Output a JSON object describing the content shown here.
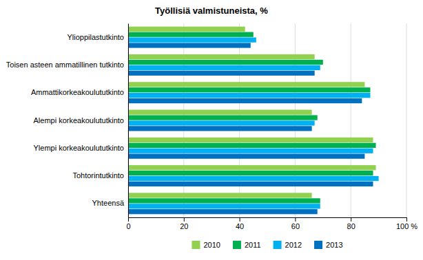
{
  "chart_data": {
    "type": "bar",
    "orientation": "horizontal",
    "title": "Työllisiä valmistuneista, %",
    "categories": [
      "Ylioppilastutkinto",
      "Toisen asteen ammatillinen tutkinto",
      "Ammattikorkeakoulututkinto",
      "Alempi korkeakoulututkinto",
      "Ylempi korkeakoulututkinto",
      "Tohtorintutkinto",
      "Yhteensä"
    ],
    "series": [
      {
        "name": "2010",
        "color": "#92d050",
        "values": [
          42,
          67,
          85,
          66,
          88,
          89,
          66
        ]
      },
      {
        "name": "2011",
        "color": "#00b050",
        "values": [
          45,
          70,
          87,
          68,
          89,
          88,
          69
        ]
      },
      {
        "name": "2012",
        "color": "#00b0f0",
        "values": [
          46,
          69,
          87,
          67,
          88,
          90,
          69
        ]
      },
      {
        "name": "2013",
        "color": "#0070c0",
        "values": [
          44,
          67,
          84,
          66,
          85,
          88,
          68
        ]
      }
    ],
    "xlim": [
      0,
      100
    ],
    "xticks": [
      0,
      20,
      40,
      60,
      80,
      {
        "value": 100,
        "label": "100 %"
      }
    ],
    "grid": true,
    "legend": "bottom"
  }
}
